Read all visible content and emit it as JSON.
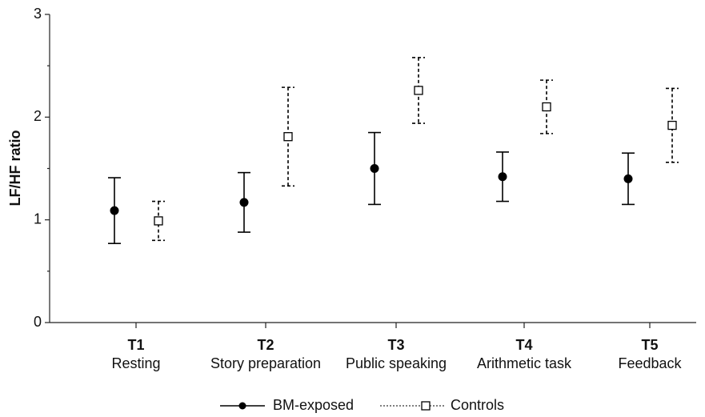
{
  "chart_data": {
    "type": "errorbar",
    "ylabel": "LF/HF ratio",
    "categories": [
      "T1",
      "T2",
      "T3",
      "T4",
      "T5"
    ],
    "category_descriptions": [
      "Resting",
      "Story preparation",
      "Public speaking",
      "Arithmetic task",
      "Feedback"
    ],
    "series": [
      {
        "name": "BM-exposed",
        "color": "#000000",
        "marker": "circle",
        "line_style": "solid",
        "values": [
          1.09,
          1.17,
          1.5,
          1.42,
          1.4
        ],
        "errors": [
          0.32,
          0.29,
          0.35,
          0.24,
          0.25
        ]
      },
      {
        "name": "Controls",
        "color": "#000000",
        "marker": "square",
        "line_style": "dashed",
        "values": [
          0.99,
          1.81,
          2.26,
          2.1,
          1.92
        ],
        "errors": [
          0.19,
          0.48,
          0.32,
          0.26,
          0.36
        ]
      }
    ],
    "ylim": [
      0,
      3
    ],
    "yticks": [
      0,
      1,
      2,
      3
    ],
    "yminor_ticks": [
      0.5,
      1.5,
      2.5
    ],
    "legend": "bottom"
  }
}
